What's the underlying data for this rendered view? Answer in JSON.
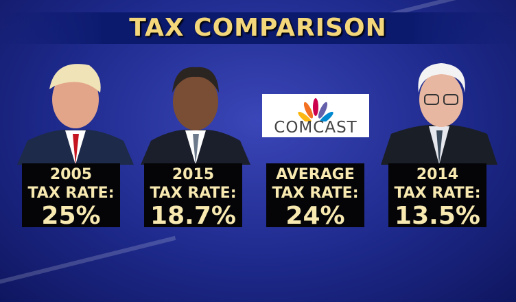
{
  "header": {
    "title": "TAX COMPARISON"
  },
  "logo": {
    "text": "COMCAST"
  },
  "panels": [
    {
      "line1": "2005",
      "line2": "TAX RATE:",
      "rate": "25%"
    },
    {
      "line1": "2015",
      "line2": "TAX RATE:",
      "rate": "18.7%"
    },
    {
      "line1": "AVERAGE",
      "line2": "TAX RATE:",
      "rate": "24%"
    },
    {
      "line1": "2014",
      "line2": "TAX RATE:",
      "rate": "13.5%"
    }
  ]
}
